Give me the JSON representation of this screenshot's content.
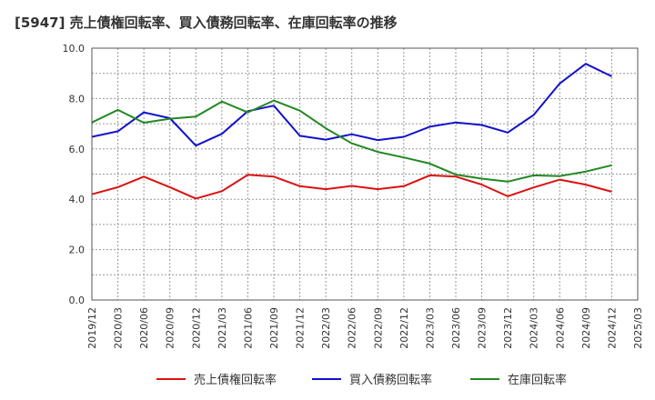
{
  "title": "[5947]  売上債権回転率、買入債務回転率、在庫回転率の推移",
  "chart_data": {
    "type": "line",
    "title": "[5947]  売上債権回転率、買入債務回転率、在庫回転率の推移",
    "xlabel": "",
    "ylabel": "",
    "ylim": [
      0,
      10
    ],
    "yticks": [
      "0.0",
      "2.0",
      "4.0",
      "6.0",
      "8.0",
      "10.0"
    ],
    "x": [
      "2019/12",
      "2020/03",
      "2020/06",
      "2020/09",
      "2020/12",
      "2021/03",
      "2021/06",
      "2021/09",
      "2021/12",
      "2022/03",
      "2022/06",
      "2022/09",
      "2022/12",
      "2023/03",
      "2023/06",
      "2023/09",
      "2023/12",
      "2024/03",
      "2024/06",
      "2024/09",
      "2024/12",
      "2025/03"
    ],
    "grid": true,
    "legend_position": "bottom",
    "series": [
      {
        "name": "売上債権回転率",
        "color": "#dd1111",
        "values": [
          4.2,
          4.48,
          4.9,
          4.48,
          4.03,
          4.32,
          4.97,
          4.9,
          4.52,
          4.4,
          4.53,
          4.4,
          4.52,
          4.95,
          4.9,
          4.58,
          4.12,
          4.47,
          4.78,
          4.58,
          4.3,
          null
        ]
      },
      {
        "name": "買入債務回転率",
        "color": "#1111cc",
        "values": [
          6.48,
          6.7,
          7.45,
          7.22,
          6.13,
          6.6,
          7.5,
          7.72,
          6.52,
          6.37,
          6.58,
          6.35,
          6.48,
          6.88,
          7.05,
          6.95,
          6.65,
          7.35,
          8.6,
          9.38,
          8.88,
          null
        ]
      },
      {
        "name": "在庫回転率",
        "color": "#228822",
        "values": [
          7.05,
          7.55,
          7.04,
          7.2,
          7.28,
          7.88,
          7.45,
          7.92,
          7.52,
          6.82,
          6.22,
          5.88,
          5.66,
          5.42,
          4.98,
          4.82,
          4.7,
          4.95,
          4.92,
          5.1,
          5.35,
          null
        ]
      }
    ]
  }
}
